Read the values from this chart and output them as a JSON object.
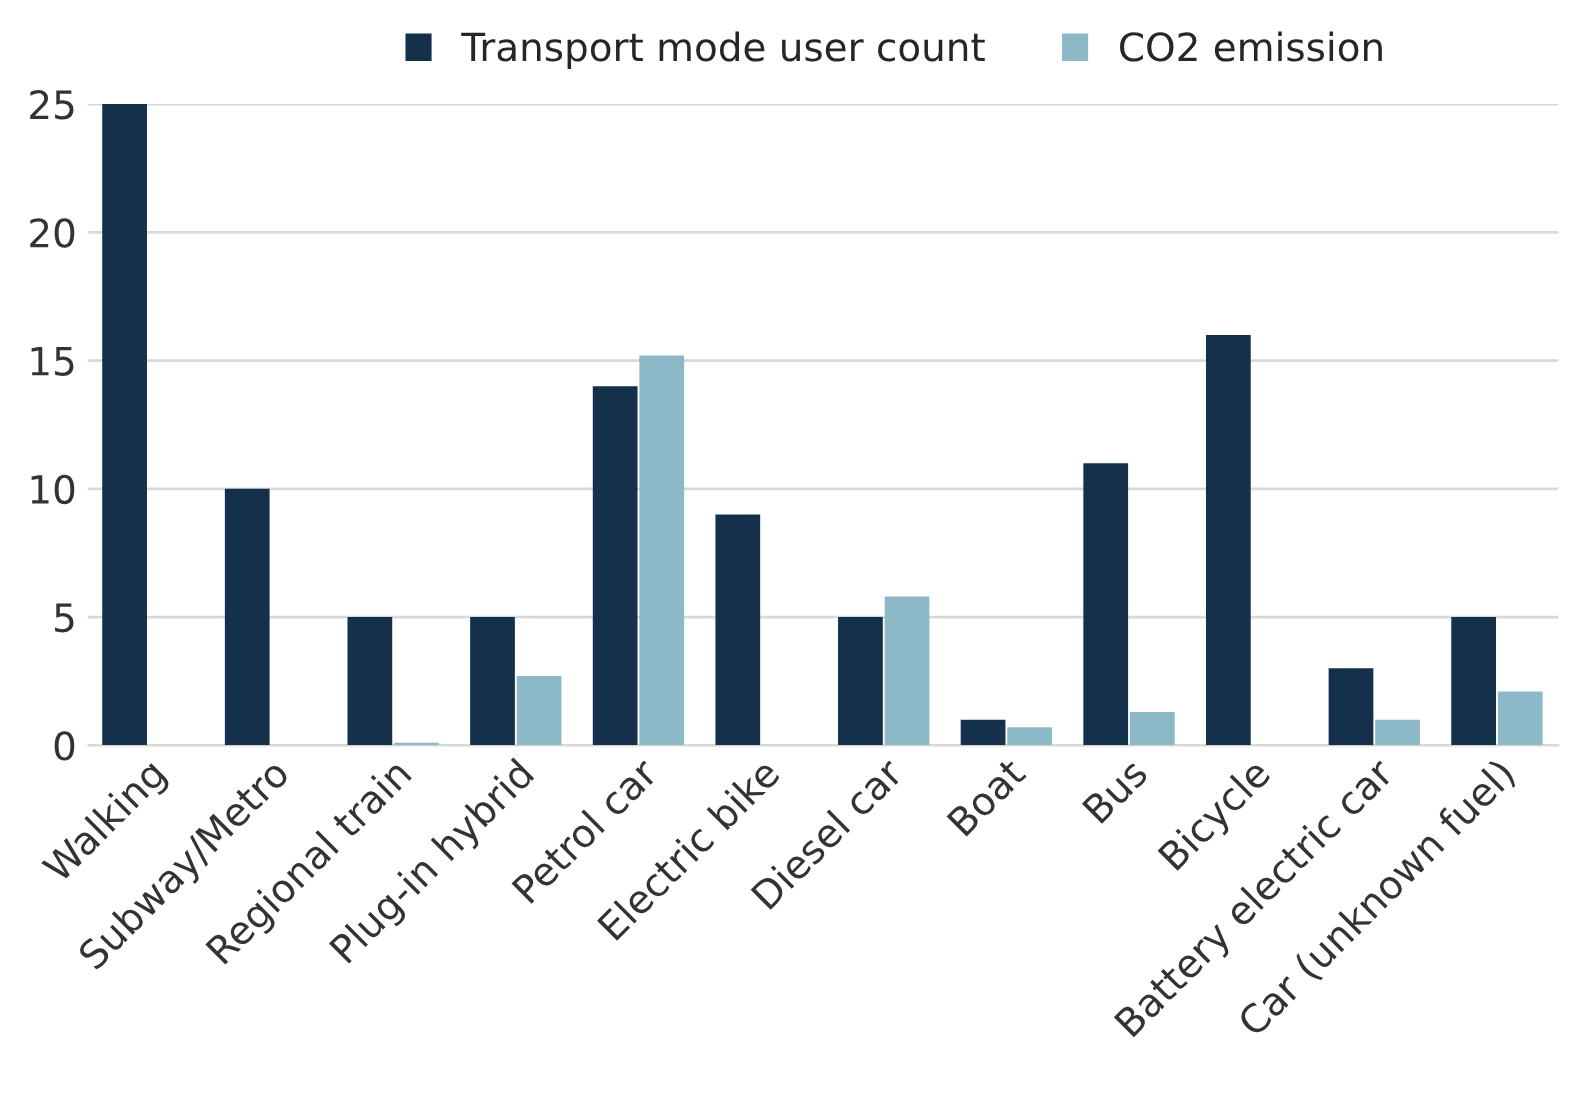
{
  "chart_data": {
    "type": "bar",
    "categories": [
      "Walking",
      "Subway/Metro",
      "Regional train",
      "Plug-in hybrid",
      "Petrol car",
      "Electric bike",
      "Diesel car",
      "Boat",
      "Bus",
      "Bicycle",
      "Battery electric car",
      "Car (unknown fuel)"
    ],
    "series": [
      {
        "name": "Transport mode user count",
        "color": "#15304a",
        "values": [
          25,
          10,
          5,
          5,
          14,
          9,
          5,
          1,
          11,
          16,
          3,
          5
        ]
      },
      {
        "name": "CO2 emission",
        "color": "#8db8c8",
        "values": [
          null,
          null,
          0.1,
          2.7,
          15.2,
          null,
          5.8,
          0.7,
          1.3,
          null,
          1.0,
          2.1
        ]
      }
    ],
    "ylim": [
      0,
      25
    ],
    "yticks": [
      0,
      5,
      10,
      15,
      20,
      25
    ],
    "grid": "y",
    "legend": "top"
  }
}
